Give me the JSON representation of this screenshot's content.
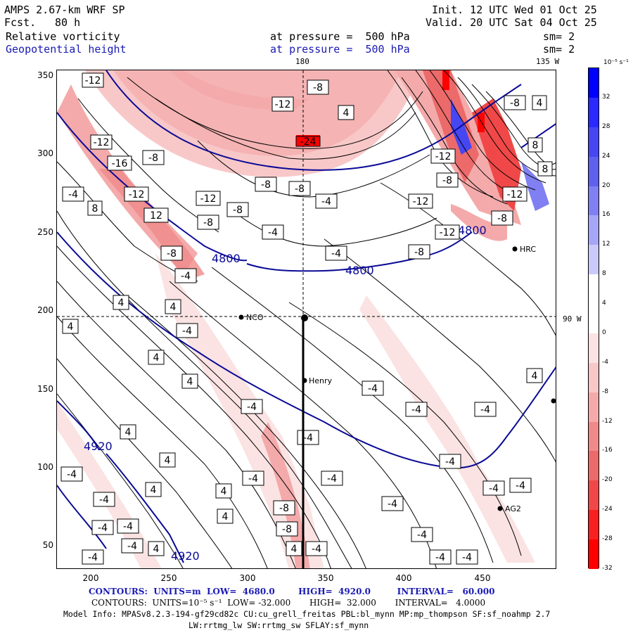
{
  "header": {
    "model": "AMPS 2.67-km WRF SP",
    "fcst_label": "Fcst.",
    "fcst_value": "80 h",
    "init": "Init. 12 UTC Wed 01 Oct 25",
    "valid": "Valid. 20 UTC Sat 04 Oct 25",
    "field1_name": "Relative vorticity",
    "field1_level": "at pressure =  500 hPa",
    "field1_sm": "sm= 2",
    "field2_name": "Geopotential height",
    "field2_level": "at pressure =  500 hPa",
    "field2_sm": "sm= 2"
  },
  "map": {
    "lon_labels": {
      "top_180": "180",
      "top_135w": "135 W",
      "right_90w": "90 W"
    },
    "x_ticks": [
      "200",
      "250",
      "300",
      "350",
      "400",
      "450"
    ],
    "y_ticks": [
      "350",
      "300",
      "250",
      "200",
      "150",
      "100",
      "50"
    ],
    "stations": [
      {
        "id": "NCO",
        "label": "NCO"
      },
      {
        "id": "Henry",
        "label": "Henry"
      },
      {
        "id": "HRC",
        "label": "HRC"
      },
      {
        "id": "AG2",
        "label": "AG2"
      }
    ],
    "height_contour_labels": [
      "4800",
      "4800",
      "4800",
      "4920",
      "4920"
    ],
    "vorticity_labels": [
      "-12",
      "-8",
      "-4",
      "4",
      "8",
      "-16",
      "-24",
      "12"
    ]
  },
  "colorbar": {
    "unit": "10⁻⁵ s⁻¹",
    "labels": [
      "32",
      "28",
      "24",
      "20",
      "16",
      "12",
      "8",
      "4",
      "0",
      "-4",
      "-8",
      "-12",
      "-16",
      "-20",
      "-24",
      "-28",
      "-32"
    ],
    "colors": [
      "#0000ff",
      "#2a2aff",
      "#4646f2",
      "#6060ee",
      "#8080f2",
      "#a6a6f6",
      "#cacafa",
      "#ffffff",
      "#ffffff",
      "#fbe3e3",
      "#f8c8c8",
      "#f4aaaa",
      "#f08a8a",
      "#ec6a6a",
      "#f04848",
      "#f82020",
      "#ff0000"
    ]
  },
  "footer": {
    "line1": "CONTOURS:  UNITS=m  LOW=  4680.0        HIGH=  4920.0         INTERVAL=   60.000",
    "line2": "CONTOURS:  UNITS=10⁻⁵ s⁻¹  LOW= -32.000       HIGH=  32.000       INTERVAL=   4.0000",
    "line3": "Model Info: MPASv8.2.3-194-gf29cd82c CU:cu_grell_freitas PBL:bl_mynn MP:mp_thompson SF:sf_noahmp 2.7",
    "line4": "LW:rrtmg_lw SW:rrtmg_sw SFLAY:sf_mynn"
  }
}
